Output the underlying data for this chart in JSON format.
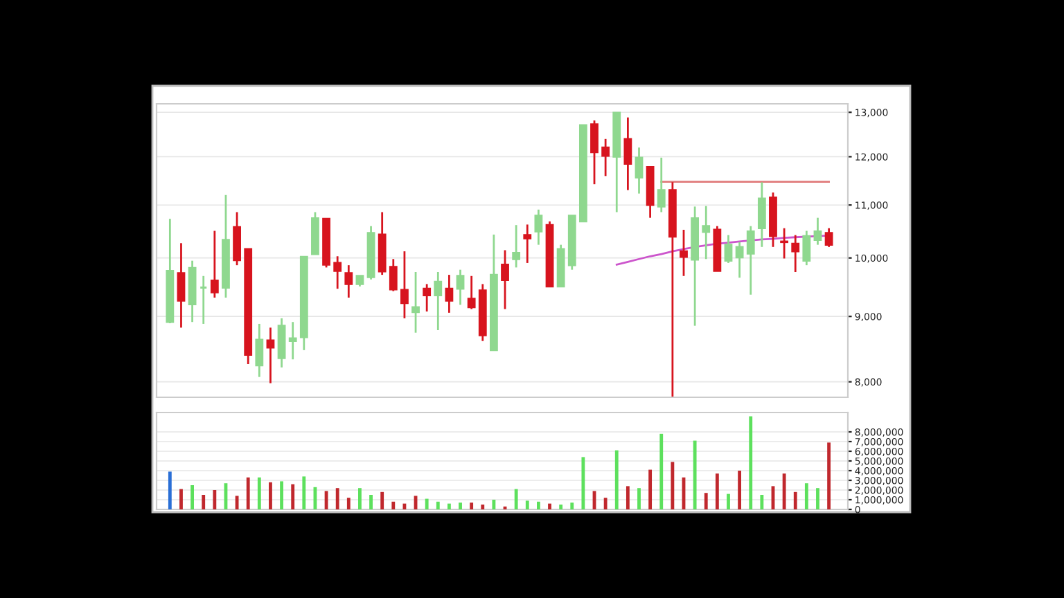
{
  "chart_data": [
    {
      "type": "candlestick",
      "categories": [
        null,
        null,
        null,
        null,
        null,
        null,
        null,
        null,
        null,
        null,
        null,
        null,
        null,
        null,
        null,
        null,
        null,
        null,
        null,
        null,
        null,
        null,
        null,
        null,
        null,
        null,
        null,
        null,
        null,
        null,
        null,
        null,
        null,
        null,
        null,
        null,
        null,
        null,
        null,
        null,
        null,
        null,
        null,
        null,
        null,
        null,
        null,
        null,
        null,
        null,
        null,
        null,
        null,
        null,
        null,
        null,
        null,
        null,
        null,
        null
      ],
      "ohlc": [
        [
          8910,
          10730,
          8890,
          9770
        ],
        [
          9730,
          10270,
          8820,
          9260
        ],
        [
          9200,
          9950,
          8910,
          9820
        ],
        [
          9480,
          9680,
          8880,
          9480
        ],
        [
          9600,
          10500,
          9310,
          9400
        ],
        [
          9480,
          11200,
          9310,
          10330
        ],
        [
          10570,
          10860,
          9870,
          9960
        ],
        [
          10160,
          10160,
          8260,
          8400
        ],
        [
          8240,
          8880,
          8070,
          8630
        ],
        [
          8620,
          8820,
          7980,
          8510
        ],
        [
          8350,
          8970,
          8210,
          8850
        ],
        [
          8610,
          8910,
          8330,
          8650
        ],
        [
          8670,
          10020,
          8470,
          10020
        ],
        [
          10070,
          10860,
          10070,
          10740
        ],
        [
          10730,
          10730,
          9830,
          9880
        ],
        [
          9910,
          10030,
          9460,
          9770
        ],
        [
          9730,
          9870,
          9310,
          9540
        ],
        [
          9540,
          9680,
          9500,
          9680
        ],
        [
          9660,
          10590,
          9620,
          10460
        ],
        [
          10430,
          10860,
          9700,
          9760
        ],
        [
          9840,
          9980,
          9420,
          9450
        ],
        [
          9440,
          10120,
          8970,
          9220
        ],
        [
          9070,
          9750,
          8740,
          9150
        ],
        [
          9460,
          9540,
          9080,
          9350
        ],
        [
          9350,
          9750,
          8780,
          9580
        ],
        [
          9460,
          9700,
          9060,
          9260
        ],
        [
          9460,
          9790,
          9190,
          9680
        ],
        [
          9290,
          9680,
          9120,
          9150
        ],
        [
          9430,
          9540,
          8610,
          8700
        ],
        [
          8470,
          10430,
          8470,
          9700
        ],
        [
          9880,
          10140,
          9120,
          9610
        ],
        [
          9980,
          10610,
          9830,
          10090
        ],
        [
          10420,
          10620,
          9910,
          10360
        ],
        [
          10490,
          10910,
          10240,
          10790
        ],
        [
          10610,
          10680,
          9500,
          9500
        ],
        [
          9500,
          10240,
          9500,
          10160
        ],
        [
          9870,
          10790,
          9790,
          10790
        ],
        [
          10680,
          12700,
          10680,
          12700
        ],
        [
          12720,
          12810,
          11420,
          12100
        ],
        [
          12200,
          12390,
          11590,
          12020
        ],
        [
          12000,
          12990,
          10860,
          12990
        ],
        [
          12390,
          12880,
          11300,
          11850
        ],
        [
          11560,
          12200,
          11230,
          11980
        ],
        [
          11780,
          11780,
          10750,
          11000
        ],
        [
          10970,
          11980,
          10860,
          11300
        ],
        [
          11300,
          11460,
          7790,
          10390
        ],
        [
          10120,
          10520,
          9680,
          10020
        ],
        [
          9970,
          10970,
          8850,
          10740
        ],
        [
          10480,
          10980,
          9980,
          10590
        ],
        [
          10520,
          10590,
          9770,
          9770
        ],
        [
          9950,
          10420,
          9910,
          10240
        ],
        [
          10010,
          10290,
          9650,
          10200
        ],
        [
          10080,
          10590,
          9360,
          10490
        ],
        [
          10550,
          11460,
          10200,
          11130
        ],
        [
          11150,
          11250,
          10200,
          10400
        ],
        [
          10300,
          10550,
          9990,
          10290
        ],
        [
          10260,
          10420,
          9750,
          10120
        ],
        [
          9950,
          10500,
          9870,
          10400
        ],
        [
          10330,
          10750,
          10240,
          10490
        ],
        [
          10460,
          10550,
          10200,
          10240
        ]
      ],
      "colors": [
        "#8fd88f",
        "#d7141e",
        "#8fd88f",
        "#8fd88f",
        "#d7141e",
        "#8fd88f",
        "#d7141e",
        "#d7141e",
        "#8fd88f",
        "#d7141e",
        "#8fd88f",
        "#8fd88f",
        "#8fd88f",
        "#8fd88f",
        "#d7141e",
        "#d7141e",
        "#d7141e",
        "#8fd88f",
        "#8fd88f",
        "#d7141e",
        "#d7141e",
        "#d7141e",
        "#8fd88f",
        "#d7141e",
        "#8fd88f",
        "#d7141e",
        "#8fd88f",
        "#d7141e",
        "#d7141e",
        "#8fd88f",
        "#d7141e",
        "#8fd88f",
        "#d7141e",
        "#8fd88f",
        "#d7141e",
        "#8fd88f",
        "#8fd88f",
        "#8fd88f",
        "#d7141e",
        "#d7141e",
        "#8fd88f",
        "#d7141e",
        "#8fd88f",
        "#d7141e",
        "#8fd88f",
        "#d7141e",
        "#d7141e",
        "#8fd88f",
        "#8fd88f",
        "#d7141e",
        "#8fd88f",
        "#8fd88f",
        "#8fd88f",
        "#8fd88f",
        "#d7141e",
        "#d7141e",
        "#d7141e",
        "#8fd88f",
        "#8fd88f",
        "#d7141e"
      ],
      "series": [
        {
          "type": "line",
          "color": "#cc55cc",
          "values": [
            null,
            null,
            null,
            null,
            null,
            null,
            null,
            null,
            null,
            null,
            null,
            null,
            null,
            null,
            null,
            null,
            null,
            null,
            null,
            null,
            null,
            null,
            null,
            null,
            null,
            null,
            null,
            null,
            null,
            null,
            null,
            null,
            null,
            null,
            null,
            null,
            null,
            null,
            null,
            null,
            9880,
            9930,
            9980,
            10030,
            10070,
            10120,
            10160,
            10200,
            10230,
            10260,
            10280,
            10300,
            10320,
            10340,
            10350,
            10370,
            10380,
            10390,
            10400,
            10410
          ]
        },
        {
          "type": "line",
          "color": "#e07a7a",
          "values": [
            null,
            null,
            null,
            null,
            null,
            null,
            null,
            null,
            null,
            null,
            null,
            null,
            null,
            null,
            null,
            null,
            null,
            null,
            null,
            null,
            null,
            null,
            null,
            null,
            null,
            null,
            null,
            null,
            null,
            null,
            null,
            null,
            null,
            null,
            null,
            null,
            null,
            null,
            null,
            null,
            null,
            null,
            null,
            null,
            11470,
            11470,
            11470,
            11470,
            11470,
            11470,
            11470,
            11470,
            11470,
            11470,
            11470,
            11470,
            11470,
            11470,
            11470,
            11470
          ]
        }
      ],
      "log": true,
      "ylim": [
        7780,
        13200
      ],
      "yticks": [
        {
          "value": 8000,
          "label": "8,000"
        },
        {
          "value": 9000,
          "label": "9,000"
        },
        {
          "value": 10000,
          "label": "10,000"
        },
        {
          "value": 11000,
          "label": "11,000"
        },
        {
          "value": 12000,
          "label": "12,000"
        },
        {
          "value": 13000,
          "label": "13,000"
        }
      ],
      "grid": "y",
      "tick_labels": "y"
    },
    {
      "type": "bar",
      "categories": [
        null,
        null,
        null,
        null,
        null,
        null,
        null,
        null,
        null,
        null,
        null,
        null,
        null,
        null,
        null,
        null,
        null,
        null,
        null,
        null,
        null,
        null,
        null,
        null,
        null,
        null,
        null,
        null,
        null,
        null,
        null,
        null,
        null,
        null,
        null,
        null,
        null,
        null,
        null,
        null,
        null,
        null,
        null,
        null,
        null,
        null,
        null,
        null,
        null,
        null,
        null,
        null,
        null,
        null,
        null,
        null,
        null,
        null,
        null,
        null
      ],
      "values": [
        3900000,
        2100000,
        2500000,
        1500000,
        2000000,
        2700000,
        1400000,
        3300000,
        3300000,
        2800000,
        2900000,
        2600000,
        3400000,
        2300000,
        1900000,
        2200000,
        1200000,
        2200000,
        1500000,
        1800000,
        800000,
        600000,
        1400000,
        1100000,
        800000,
        600000,
        700000,
        700000,
        500000,
        1000000,
        300000,
        2100000,
        900000,
        800000,
        600000,
        500000,
        700000,
        5400000,
        1900000,
        1200000,
        6100000,
        2400000,
        2200000,
        4100000,
        7800000,
        4900000,
        3300000,
        7100000,
        1700000,
        3700000,
        1600000,
        4000000,
        9600000,
        1500000,
        2400000,
        3700000,
        1800000,
        2700000,
        2200000,
        6900000
      ],
      "colors": [
        "#2a6fd6",
        "#c0282d",
        "#5de05d",
        "#c0282d",
        "#c0282d",
        "#5de05d",
        "#c0282d",
        "#c0282d",
        "#5de05d",
        "#c0282d",
        "#5de05d",
        "#c0282d",
        "#5de05d",
        "#5de05d",
        "#c0282d",
        "#c0282d",
        "#c0282d",
        "#5de05d",
        "#5de05d",
        "#c0282d",
        "#c0282d",
        "#c0282d",
        "#c0282d",
        "#5de05d",
        "#5de05d",
        "#5de05d",
        "#5de05d",
        "#c0282d",
        "#c0282d",
        "#5de05d",
        "#c0282d",
        "#5de05d",
        "#5de05d",
        "#5de05d",
        "#c0282d",
        "#5de05d",
        "#5de05d",
        "#5de05d",
        "#c0282d",
        "#c0282d",
        "#5de05d",
        "#c0282d",
        "#5de05d",
        "#c0282d",
        "#5de05d",
        "#c0282d",
        "#c0282d",
        "#5de05d",
        "#c0282d",
        "#c0282d",
        "#5de05d",
        "#c0282d",
        "#5de05d",
        "#5de05d",
        "#c0282d",
        "#c0282d",
        "#c0282d",
        "#5de05d",
        "#5de05d",
        "#c0282d"
      ],
      "ylim": [
        0,
        10000000
      ],
      "yticks": [
        {
          "value": 0,
          "label": "0"
        },
        {
          "value": 1000000,
          "label": "1,000,000"
        },
        {
          "value": 2000000,
          "label": "2,000,000"
        },
        {
          "value": 3000000,
          "label": "3,000,000"
        },
        {
          "value": 4000000,
          "label": "4,000,000"
        },
        {
          "value": 5000000,
          "label": "5,000,000"
        },
        {
          "value": 6000000,
          "label": "6,000,000"
        },
        {
          "value": 7000000,
          "label": "7,000,000"
        },
        {
          "value": 8000000,
          "label": "8,000,000"
        }
      ],
      "grid": "y",
      "tick_labels": "y"
    }
  ]
}
